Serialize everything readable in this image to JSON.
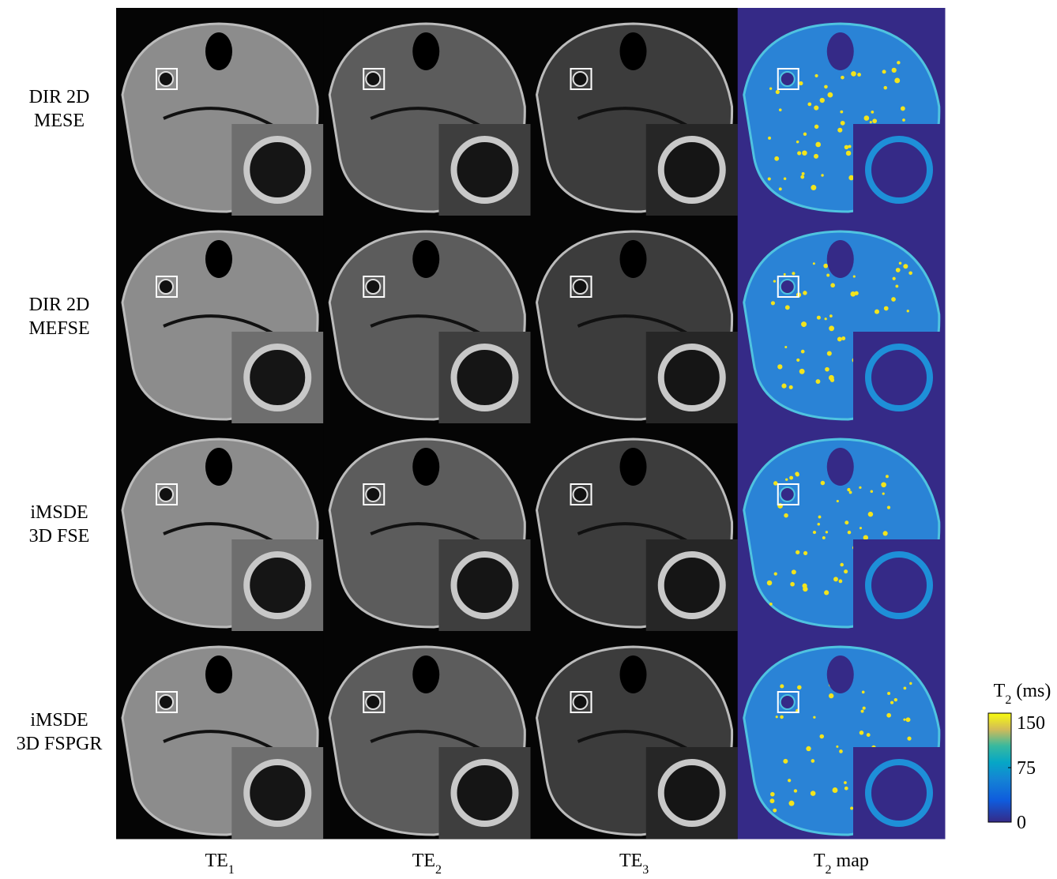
{
  "figure": {
    "row_labels": [
      [
        "DIR 2D",
        "MESE"
      ],
      [
        "DIR 2D",
        "MEFSE"
      ],
      [
        "iMSDE",
        "3D FSE"
      ],
      [
        "iMSDE",
        "3D FSPGR"
      ]
    ],
    "column_labels": [
      {
        "base": "TE",
        "sub": "1"
      },
      {
        "base": "TE",
        "sub": "2"
      },
      {
        "base": "TE",
        "sub": "3"
      },
      {
        "base": "T",
        "sub": "2",
        "rest": " map"
      }
    ],
    "colorbar": {
      "title": {
        "base": "T",
        "sub": "2",
        "rest": " (ms)"
      },
      "lim": [
        0,
        150
      ],
      "ticks": [
        0,
        75,
        150
      ]
    }
  }
}
